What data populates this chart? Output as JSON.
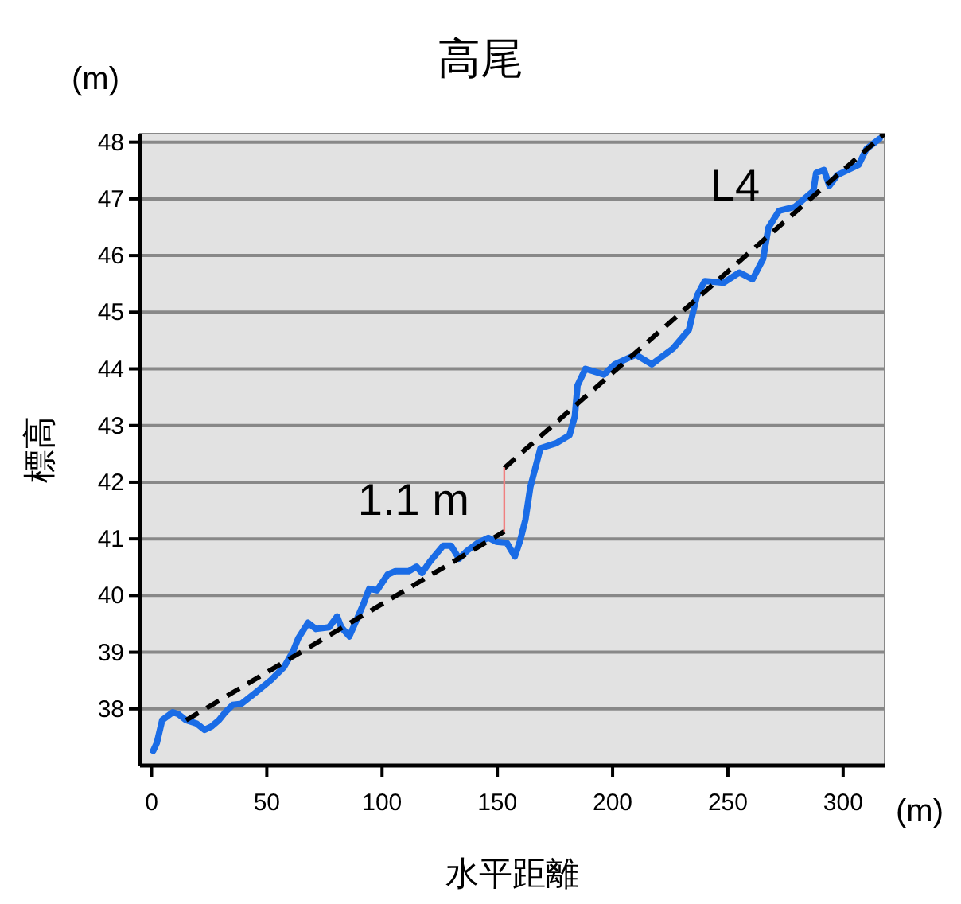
{
  "chart_data": {
    "type": "line",
    "title": "高尾",
    "xlabel": "水平距離",
    "ylabel": "標高",
    "xlim": [
      -5,
      318
    ],
    "xticks": [
      0,
      50,
      100,
      150,
      200,
      250,
      300
    ],
    "ylim": [
      37,
      48.15
    ],
    "yticks": [
      38,
      39,
      40,
      41,
      42,
      43,
      44,
      45,
      46,
      47,
      48
    ],
    "grid": "y",
    "annotations": [
      "(m)",
      "(m)",
      "L4",
      {
        "text": "1.1 m",
        "x": 153,
        "y": 41.7
      }
    ],
    "series": [
      {
        "color": "#1a6ce6",
        "line_style": "solid",
        "x": [
          0.7,
          2.3,
          4.6,
          9.2,
          11.5,
          15,
          19.6,
          23,
          26,
          29.2,
          32.2,
          35.2,
          39,
          44.9,
          51.8,
          57.5,
          61.4,
          63.7,
          67.9,
          71.3,
          77,
          80.5,
          82.3,
          85.8,
          88.1,
          92,
          94.4,
          97.8,
          102.4,
          105.8,
          111.6,
          115,
          117.3,
          120.8,
          126.5,
          129.9,
          133.4,
          136.9,
          141.5,
          146.1,
          149.5,
          154.1,
          157.6,
          159.9,
          162.2,
          164.3,
          168.7,
          175.6,
          181.3,
          183.6,
          184.8,
          188.2,
          196.3,
          200.9,
          210.1,
          217,
          226.2,
          233.1,
          236.6,
          240,
          248.1,
          255,
          260.7,
          265.3,
          267.6,
          272.2,
          279.1,
          287.1,
          288.3,
          291.7,
          294,
          297.5,
          306.7,
          310.1,
          315.8
        ],
        "values": [
          37.26,
          37.4,
          37.8,
          37.94,
          37.91,
          37.8,
          37.74,
          37.63,
          37.69,
          37.8,
          37.95,
          38.07,
          38.09,
          38.28,
          38.51,
          38.74,
          39.02,
          39.25,
          39.52,
          39.41,
          39.44,
          39.63,
          39.44,
          39.28,
          39.49,
          39.86,
          40.12,
          40.09,
          40.37,
          40.43,
          40.43,
          40.51,
          40.4,
          40.6,
          40.88,
          40.88,
          40.65,
          40.79,
          40.93,
          41.02,
          40.95,
          40.93,
          40.69,
          40.97,
          41.34,
          41.91,
          42.6,
          42.69,
          42.83,
          43.16,
          43.71,
          44.0,
          43.9,
          44.08,
          44.25,
          44.08,
          44.36,
          44.69,
          45.29,
          45.55,
          45.52,
          45.7,
          45.58,
          45.94,
          46.49,
          46.79,
          46.86,
          47.14,
          47.46,
          47.51,
          47.23,
          47.42,
          47.6,
          47.88,
          48.06
        ]
      },
      {
        "color": "#000000",
        "line_style": "dashed",
        "x": [
          15,
          153
        ],
        "values": [
          37.8,
          41.13
        ]
      },
      {
        "color": "#000000",
        "line_style": "dashed",
        "x": [
          153,
          318
        ],
        "values": [
          42.25,
          48.15
        ]
      },
      {
        "color": "#f08080",
        "line_style": "solid",
        "x": [
          153,
          153
        ],
        "values": [
          41.13,
          42.25
        ]
      }
    ]
  }
}
